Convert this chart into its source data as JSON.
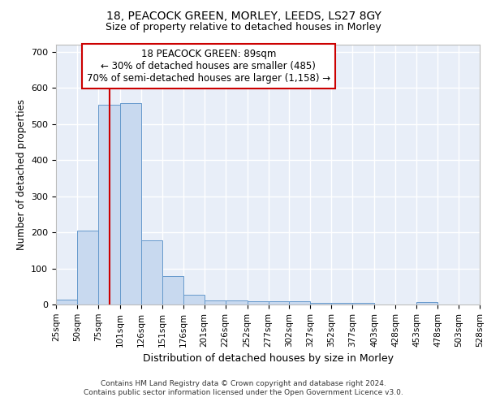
{
  "title1": "18, PEACOCK GREEN, MORLEY, LEEDS, LS27 8GY",
  "title2": "Size of property relative to detached houses in Morley",
  "xlabel": "Distribution of detached houses by size in Morley",
  "ylabel": "Number of detached properties",
  "annotation_line1": "18 PEACOCK GREEN: 89sqm",
  "annotation_line2": "← 30% of detached houses are smaller (485)",
  "annotation_line3": "70% of semi-detached houses are larger (1,158) →",
  "footnote1": "Contains HM Land Registry data © Crown copyright and database right 2024.",
  "footnote2": "Contains public sector information licensed under the Open Government Licence v3.0.",
  "bar_color": "#c8d9ef",
  "bar_edge_color": "#6699cc",
  "red_line_x": 89,
  "bin_edges": [
    25,
    50,
    75,
    101,
    126,
    151,
    176,
    201,
    226,
    252,
    277,
    302,
    327,
    352,
    377,
    403,
    428,
    453,
    478,
    503,
    528
  ],
  "bin_counts": [
    13,
    204,
    554,
    557,
    178,
    78,
    28,
    12,
    12,
    9,
    8,
    10,
    5,
    5,
    5,
    0,
    0,
    6,
    0,
    0
  ],
  "ylim": [
    0,
    720
  ],
  "yticks": [
    0,
    100,
    200,
    300,
    400,
    500,
    600,
    700
  ],
  "background_color": "#e8eef8",
  "grid_color": "#ffffff",
  "annotation_box_color": "#ffffff",
  "annotation_box_edge_color": "#cc0000",
  "red_line_color": "#cc0000",
  "title_fontsize": 10,
  "subtitle_fontsize": 9
}
